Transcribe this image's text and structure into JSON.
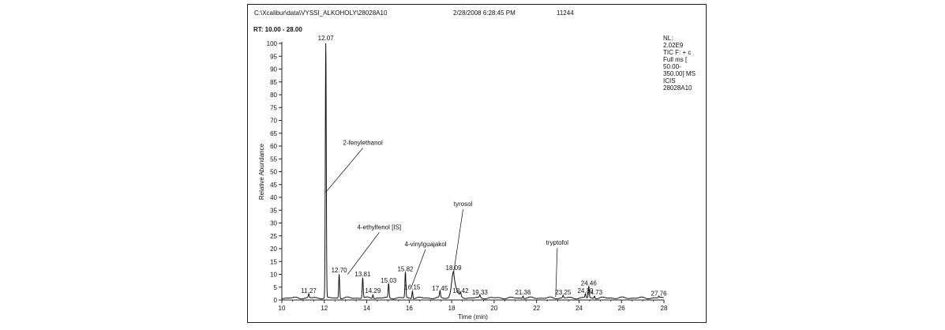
{
  "header": {
    "path": "C:\\Xcalibur\\data\\VYSSI_ALKOHOLY\\28028A10",
    "datetime": "2/28/2008 6:28:45 PM",
    "number": "11244",
    "rt_range": "RT: 10.00 - 28.00"
  },
  "info_box": {
    "lines": [
      "NL:",
      "2.02E9",
      "TIC F: + c",
      "Full ms [",
      "50.00-",
      "350.00]  MS",
      "ICIS",
      "28028A10"
    ]
  },
  "chart_data": {
    "type": "line",
    "xlabel": "Time (min)",
    "ylabel": "Relative Abundance",
    "xlim": [
      10,
      28
    ],
    "ylim": [
      0,
      100
    ],
    "xticks": [
      10,
      12,
      14,
      16,
      18,
      20,
      22,
      24,
      26,
      28
    ],
    "yticks": [
      0,
      5,
      10,
      15,
      20,
      25,
      30,
      35,
      40,
      45,
      50,
      55,
      60,
      65,
      70,
      75,
      80,
      85,
      90,
      95,
      100
    ],
    "peaks": [
      {
        "rt": 11.27,
        "height": 1.5,
        "label": "11.27"
      },
      {
        "rt": 12.07,
        "height": 100,
        "label": "12.07"
      },
      {
        "rt": 12.7,
        "height": 9.5,
        "label": "12.70"
      },
      {
        "rt": 13.81,
        "height": 8,
        "label": "13.81"
      },
      {
        "rt": 14.29,
        "height": 1.5,
        "label": "14.29"
      },
      {
        "rt": 15.03,
        "height": 5.5,
        "label": "15.03"
      },
      {
        "rt": 15.82,
        "height": 10,
        "label": "15.82"
      },
      {
        "rt": 16.15,
        "height": 3,
        "label": "16.15"
      },
      {
        "rt": 17.45,
        "height": 2.5,
        "label": "17.45"
      },
      {
        "rt": 18.09,
        "height": 10.5,
        "label": "18.09"
      },
      {
        "rt": 18.42,
        "height": 1.5,
        "label": "18.42"
      },
      {
        "rt": 19.33,
        "height": 1,
        "label": "19.33"
      },
      {
        "rt": 21.36,
        "height": 1,
        "label": "21.36"
      },
      {
        "rt": 23.25,
        "height": 1,
        "label": "23.25"
      },
      {
        "rt": 24.3,
        "height": 1.5,
        "label": "24.30"
      },
      {
        "rt": 24.46,
        "height": 4.5,
        "label": "24.46"
      },
      {
        "rt": 24.73,
        "height": 1,
        "label": "24.73"
      },
      {
        "rt": 27.76,
        "height": 0.5,
        "label": "27.76"
      }
    ],
    "annotations": [
      {
        "text": "2-fenylethanol",
        "rt": 12.07,
        "y": 42
      },
      {
        "text": "4-ethylfenol [IS]",
        "rt": 13.1,
        "y": 10
      },
      {
        "text": "4-vinylguajakol",
        "rt": 16.1,
        "y": 5
      },
      {
        "text": "tyrosol",
        "rt": 18.09,
        "y": 10.5
      },
      {
        "text": "tryptofol",
        "rt": 22.9,
        "y": 1.2
      }
    ]
  }
}
